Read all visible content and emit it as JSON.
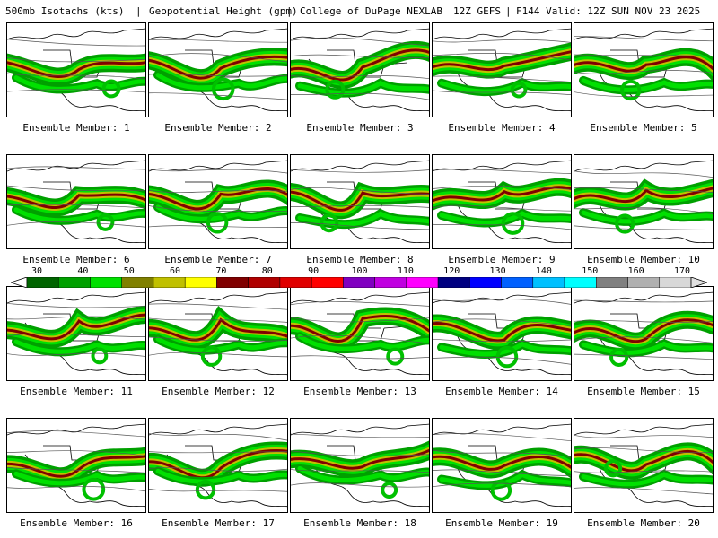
{
  "header": {
    "field": "500mb Isotachs (kts)",
    "height": "Geopotential Height (gpm)",
    "source": "College of DuPage NEXLAB",
    "run": "12Z GEFS",
    "valid": "F144 Valid: 12Z SUN NOV 23 2025"
  },
  "members": [
    {
      "label": "Ensemble Member: 1"
    },
    {
      "label": "Ensemble Member: 2"
    },
    {
      "label": "Ensemble Member: 3"
    },
    {
      "label": "Ensemble Member: 4"
    },
    {
      "label": "Ensemble Member: 5"
    },
    {
      "label": "Ensemble Member: 6"
    },
    {
      "label": "Ensemble Member: 7"
    },
    {
      "label": "Ensemble Member: 8"
    },
    {
      "label": "Ensemble Member: 9"
    },
    {
      "label": "Ensemble Member: 10"
    },
    {
      "label": "Ensemble Member: 11"
    },
    {
      "label": "Ensemble Member: 12"
    },
    {
      "label": "Ensemble Member: 13"
    },
    {
      "label": "Ensemble Member: 14"
    },
    {
      "label": "Ensemble Member: 15"
    },
    {
      "label": "Ensemble Member: 16"
    },
    {
      "label": "Ensemble Member: 17"
    },
    {
      "label": "Ensemble Member: 18"
    },
    {
      "label": "Ensemble Member: 19"
    },
    {
      "label": "Ensemble Member: 20"
    }
  ],
  "colorbar": {
    "ticks": [
      "30",
      "40",
      "50",
      "60",
      "70",
      "80",
      "90",
      "100",
      "110",
      "120",
      "130",
      "140",
      "150",
      "160",
      "170"
    ],
    "colors": [
      "#006400",
      "#00a000",
      "#00e000",
      "#808000",
      "#c0c000",
      "#ffff00",
      "#800000",
      "#b00000",
      "#e00000",
      "#ff0000",
      "#8000c0",
      "#c000e0",
      "#ff00ff",
      "#000080",
      "#0000ff",
      "#0060ff",
      "#00c0ff",
      "#00ffff",
      "#808080",
      "#b0b0b0",
      "#d8d8d8"
    ]
  }
}
